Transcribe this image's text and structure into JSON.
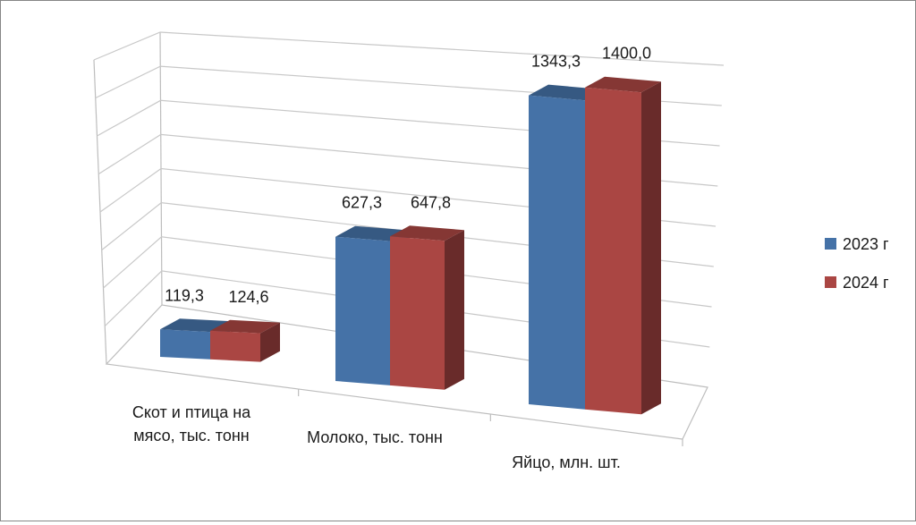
{
  "chart_data": {
    "type": "bar",
    "categories": [
      [
        "Скот и птица на",
        "мясо, тыс. тонн"
      ],
      [
        "Молоко, тыс. тонн"
      ],
      [
        "Яйцо, млн. шт."
      ]
    ],
    "series": [
      {
        "name": "2023 г",
        "color": "#4572A7",
        "values": [
          119.3,
          627.3,
          1343.3
        ],
        "labels": [
          "119,3",
          "627,3",
          "1343,3"
        ]
      },
      {
        "name": "2024 г",
        "color": "#AA4643",
        "values": [
          124.6,
          647.8,
          1400.0
        ],
        "labels": [
          "124,6",
          "647,8",
          "1400,0"
        ]
      }
    ],
    "ylim": [
      0,
      1600
    ],
    "grid": true,
    "legend_position": "right",
    "style": "3d-clustered-column",
    "title": "",
    "xlabel": "",
    "ylabel": ""
  }
}
